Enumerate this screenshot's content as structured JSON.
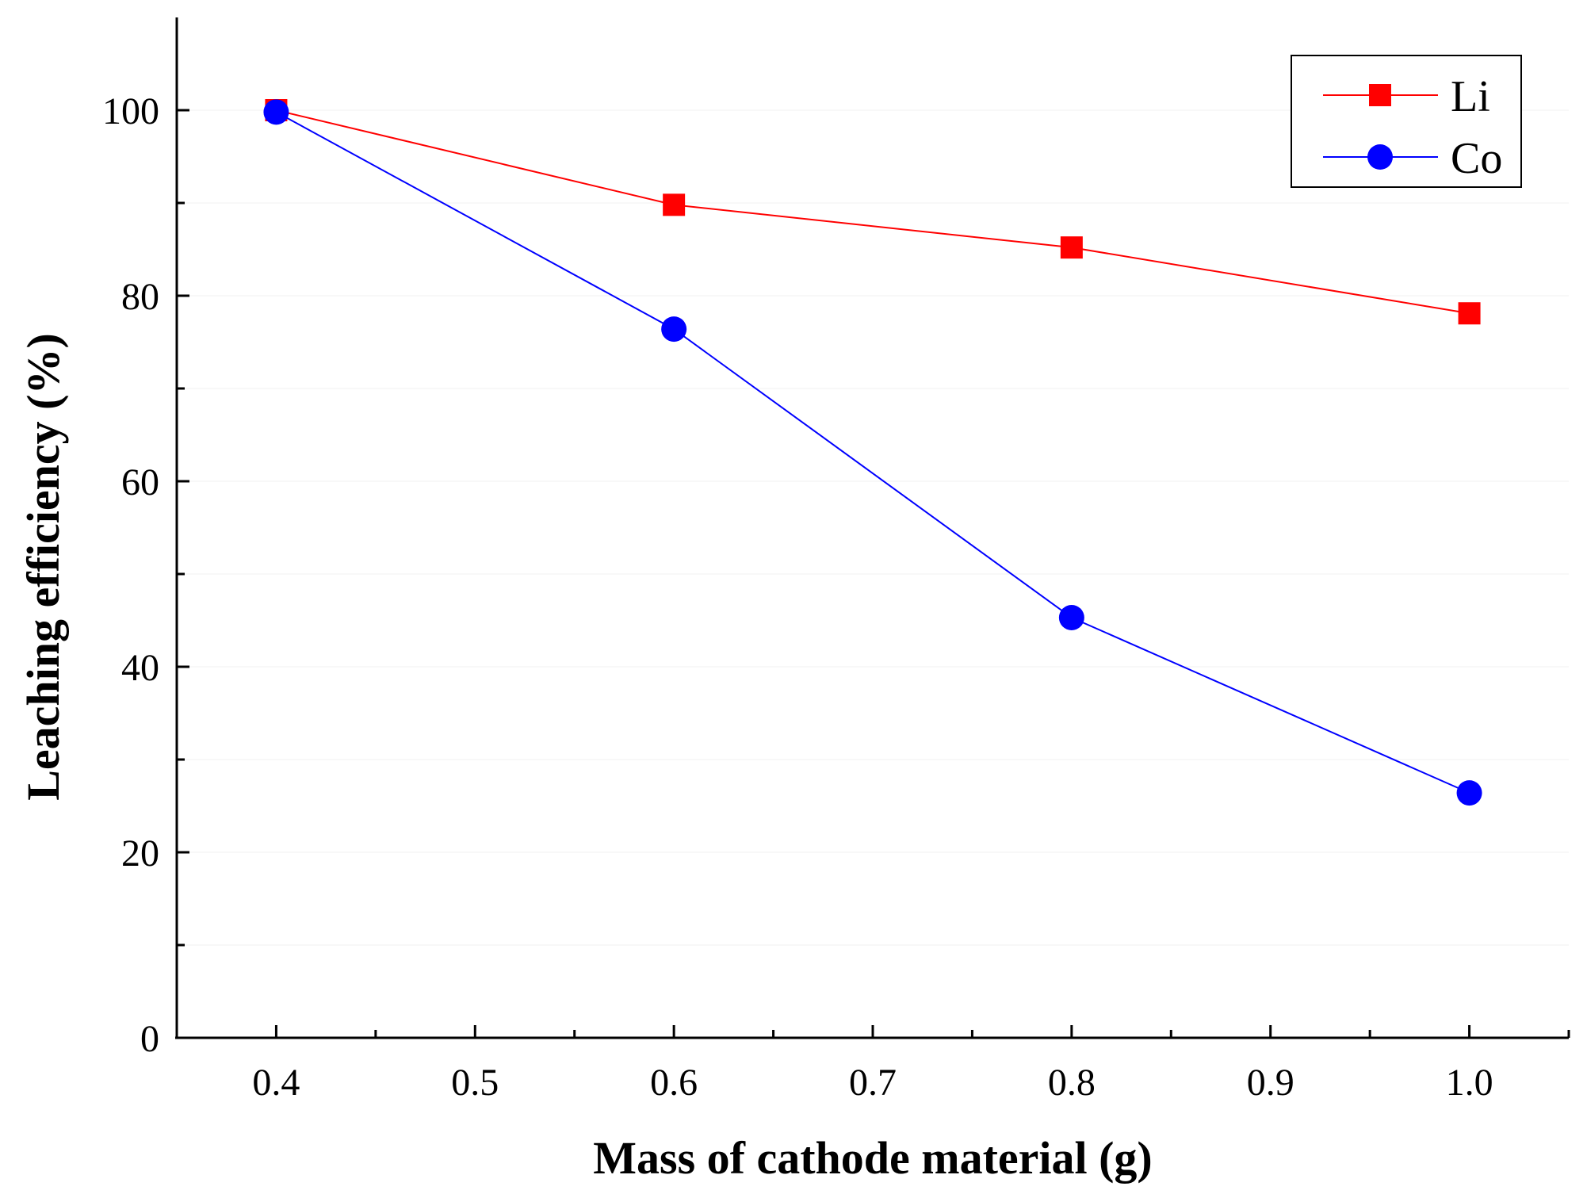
{
  "chart_data": {
    "type": "line",
    "title": "",
    "xlabel": "Mass of cathode material (g)",
    "ylabel": "Leaching efficiency (%)",
    "xlim": [
      0.35,
      1.05
    ],
    "ylim": [
      0,
      110
    ],
    "xticks": [
      0.4,
      0.5,
      0.6,
      0.7,
      0.8,
      0.9,
      1.0
    ],
    "xtick_labels": [
      "0.4",
      "0.5",
      "0.6",
      "0.7",
      "0.8",
      "0.9",
      "1.0"
    ],
    "yticks": [
      0,
      20,
      40,
      60,
      80,
      100
    ],
    "ytick_labels": [
      "0",
      "20",
      "40",
      "60",
      "80",
      "100"
    ],
    "grid": true,
    "legend_position": "top-right",
    "x": [
      0.4,
      0.6,
      0.8,
      1.0
    ],
    "series": [
      {
        "name": "Li",
        "values": [
          100.0,
          89.8,
          85.2,
          78.1
        ],
        "color": "#ff0000",
        "marker": "square"
      },
      {
        "name": "Co",
        "values": [
          99.8,
          76.4,
          45.3,
          26.4
        ],
        "color": "#0000ff",
        "marker": "circle"
      }
    ]
  }
}
